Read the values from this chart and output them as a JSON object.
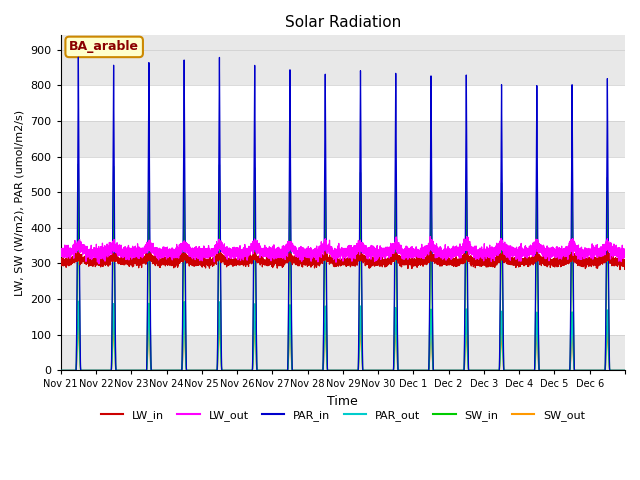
{
  "title": "Solar Radiation",
  "ylabel": "LW, SW (W/m2), PAR (umol/m2/s)",
  "xlabel": "Time",
  "annotation": "BA_arable",
  "ylim": [
    0,
    940
  ],
  "yticks": [
    0,
    100,
    200,
    300,
    400,
    500,
    600,
    700,
    800,
    900
  ],
  "num_days": 16,
  "x_tick_labels": [
    "Nov 21",
    "Nov 22",
    "Nov 23",
    "Nov 24",
    "Nov 25",
    "Nov 26",
    "Nov 27",
    "Nov 28",
    "Nov 29",
    "Nov 30",
    "Dec 1",
    "Dec 2",
    "Dec 3",
    "Dec 4",
    "Dec 5",
    "Dec 6"
  ],
  "series_colors": {
    "LW_in": "#cc0000",
    "LW_out": "#ff00ff",
    "PAR_in": "#0000cc",
    "PAR_out": "#00cccc",
    "SW_in": "#00cc00",
    "SW_out": "#ff9900"
  },
  "background_color": "#e8e8e8",
  "band_color": "#d0d0d0",
  "par_peaks": [
    880,
    860,
    870,
    880,
    890,
    870,
    860,
    850,
    860,
    850,
    840,
    840,
    810,
    805,
    805,
    820
  ],
  "sw_peaks": [
    580,
    575,
    570,
    585,
    585,
    578,
    572,
    568,
    568,
    562,
    552,
    538,
    532,
    528,
    538,
    542
  ],
  "sw_out_peaks": [
    145,
    140,
    140,
    145,
    145,
    140,
    140,
    135,
    135,
    130,
    125,
    125,
    120,
    120,
    120,
    125
  ],
  "par_out_peaks": [
    195,
    188,
    190,
    195,
    195,
    190,
    188,
    185,
    185,
    180,
    175,
    175,
    168,
    165,
    165,
    170
  ],
  "lw_base": 305,
  "lw_out_base": 330
}
